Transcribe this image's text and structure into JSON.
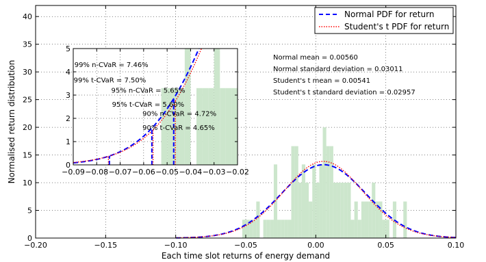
{
  "chart_data": [
    {
      "type": "bar",
      "role": "main",
      "xlabel": "Each time slot returns of energy demand",
      "ylabel": "Normalised return distribution",
      "xlim": [
        -0.2,
        0.1
      ],
      "ylim": [
        0,
        42
      ],
      "xticks": [
        -0.2,
        -0.15,
        -0.1,
        -0.05,
        0.0,
        0.05,
        0.1
      ],
      "xtick_labels": [
        "−0.20",
        "−0.15",
        "−0.10",
        "−0.05",
        "0.00",
        "0.05",
        "0.10"
      ],
      "yticks": [
        0,
        5,
        10,
        15,
        20,
        25,
        30,
        35,
        40
      ],
      "ytick_labels": [
        "0",
        "5",
        "10",
        "15",
        "20",
        "25",
        "30",
        "35",
        "40"
      ],
      "grid": true,
      "histogram": {
        "bin_width": 0.0025,
        "bins": [
          [
            -0.0525,
            3.3
          ],
          [
            -0.05,
            3.3
          ],
          [
            -0.0475,
            3.3
          ],
          [
            -0.045,
            3.3
          ],
          [
            -0.0425,
            6.6
          ],
          [
            -0.0375,
            3.3
          ],
          [
            -0.035,
            3.3
          ],
          [
            -0.0325,
            3.3
          ],
          [
            -0.03,
            13.3
          ],
          [
            -0.0275,
            3.3
          ],
          [
            -0.025,
            3.3
          ],
          [
            -0.0225,
            3.3
          ],
          [
            -0.02,
            3.3
          ],
          [
            -0.0175,
            16.6
          ],
          [
            -0.015,
            16.6
          ],
          [
            -0.0125,
            10.0
          ],
          [
            -0.01,
            13.3
          ],
          [
            -0.0075,
            10.0
          ],
          [
            -0.005,
            6.6
          ],
          [
            -0.0025,
            13.3
          ],
          [
            0.0,
            10.0
          ],
          [
            0.0025,
            13.3
          ],
          [
            0.005,
            20.0
          ],
          [
            0.0075,
            16.6
          ],
          [
            0.01,
            16.6
          ],
          [
            0.0125,
            10.0
          ],
          [
            0.015,
            10.0
          ],
          [
            0.0175,
            10.0
          ],
          [
            0.02,
            10.0
          ],
          [
            0.0225,
            10.0
          ],
          [
            0.025,
            3.3
          ],
          [
            0.0275,
            6.6
          ],
          [
            0.03,
            3.3
          ],
          [
            0.0325,
            6.6
          ],
          [
            0.035,
            6.6
          ],
          [
            0.0375,
            6.6
          ],
          [
            0.04,
            10.0
          ],
          [
            0.0425,
            6.6
          ],
          [
            0.045,
            6.6
          ],
          [
            0.0475,
            3.3
          ],
          [
            0.05,
            3.3
          ],
          [
            0.055,
            6.6
          ],
          [
            0.0625,
            6.6
          ]
        ],
        "color": "#cce6cc"
      },
      "series": [
        {
          "name": "Normal PDF for return",
          "distribution": "normal",
          "mean": 0.0056,
          "sd": 0.03011,
          "color": "#0000ff",
          "style": "dashed"
        },
        {
          "name": "Student's t PDF for return",
          "distribution": "student-t",
          "mean": 0.00541,
          "sd": 0.02957,
          "color": "#ff0000",
          "style": "dotted"
        }
      ],
      "legend": {
        "placement": "top-right",
        "entries": [
          "Normal PDF for return",
          "Student's t PDF for return"
        ]
      },
      "annotations": [
        "Normal mean = 0.00560",
        "Normal standard deviation = 0.03011",
        "Student's t mean = 0.00541",
        "Student's t standard deviation = 0.02957"
      ]
    },
    {
      "type": "line",
      "role": "inset",
      "placement": "upper-left",
      "xlim": [
        -0.09,
        -0.02
      ],
      "ylim": [
        0,
        5
      ],
      "xticks": [
        -0.09,
        -0.08,
        -0.07,
        -0.06,
        -0.05,
        -0.04,
        -0.03,
        -0.02
      ],
      "xtick_labels": [
        "−0.09",
        "−0.08",
        "−0.07",
        "−0.06",
        "−0.05",
        "−0.04",
        "−0.03",
        "−0.02"
      ],
      "yticks": [
        0,
        1,
        2,
        3,
        4,
        5
      ],
      "ytick_labels": [
        "0",
        "1",
        "2",
        "3",
        "4",
        "5"
      ],
      "grid": true,
      "vlines": [
        {
          "x": -0.0746,
          "color": "#0000ff",
          "style": "dashed"
        },
        {
          "x": -0.075,
          "color": "#ff0000",
          "style": "dotted"
        },
        {
          "x": -0.0565,
          "color": "#0000ff",
          "style": "dashed"
        },
        {
          "x": -0.056,
          "color": "#ff0000",
          "style": "dotted"
        },
        {
          "x": -0.0472,
          "color": "#0000ff",
          "style": "dashed"
        },
        {
          "x": -0.0465,
          "color": "#ff0000",
          "style": "dotted"
        }
      ],
      "labels": [
        {
          "text": "99% n-CVaR = 7.46%",
          "x": -0.0895,
          "y": 4.2
        },
        {
          "text": "99% t-CVaR = 7.50%",
          "x": -0.0898,
          "y": 3.55
        },
        {
          "text": "95% n-CVaR = 5.65%",
          "x": -0.0738,
          "y": 3.1
        },
        {
          "text": "95% t-CVaR = 5.60%",
          "x": -0.0735,
          "y": 2.5
        },
        {
          "text": "90% n-CVaR = 4.72%",
          "x": -0.0605,
          "y": 2.1
        },
        {
          "text": "90% t-CVaR = 4.65%",
          "x": -0.0605,
          "y": 1.5
        }
      ]
    }
  ]
}
